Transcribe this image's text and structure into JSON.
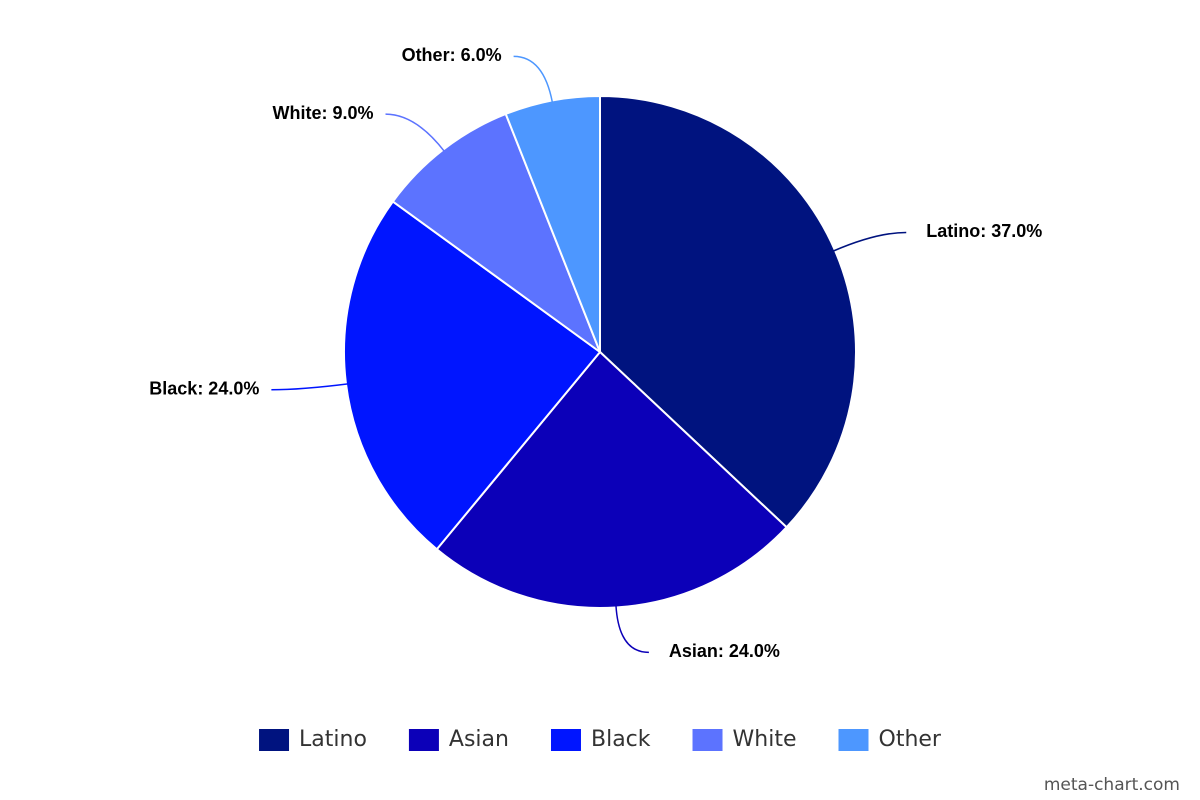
{
  "chart_data": {
    "type": "pie",
    "categories": [
      "Latino",
      "Asian",
      "Black",
      "White",
      "Other"
    ],
    "values": [
      37,
      24,
      24,
      9,
      6
    ],
    "value_labels": [
      "Latino: 37.0%",
      "Asian: 24.0%",
      "Black: 24.0%",
      "White: 9.0%",
      "Other: 6.0%"
    ],
    "colors": [
      "#00137f",
      "#0c00b8",
      "#0015ff",
      "#5c73ff",
      "#4d97ff"
    ],
    "legend": "bottom",
    "credit": "meta-chart.com"
  }
}
